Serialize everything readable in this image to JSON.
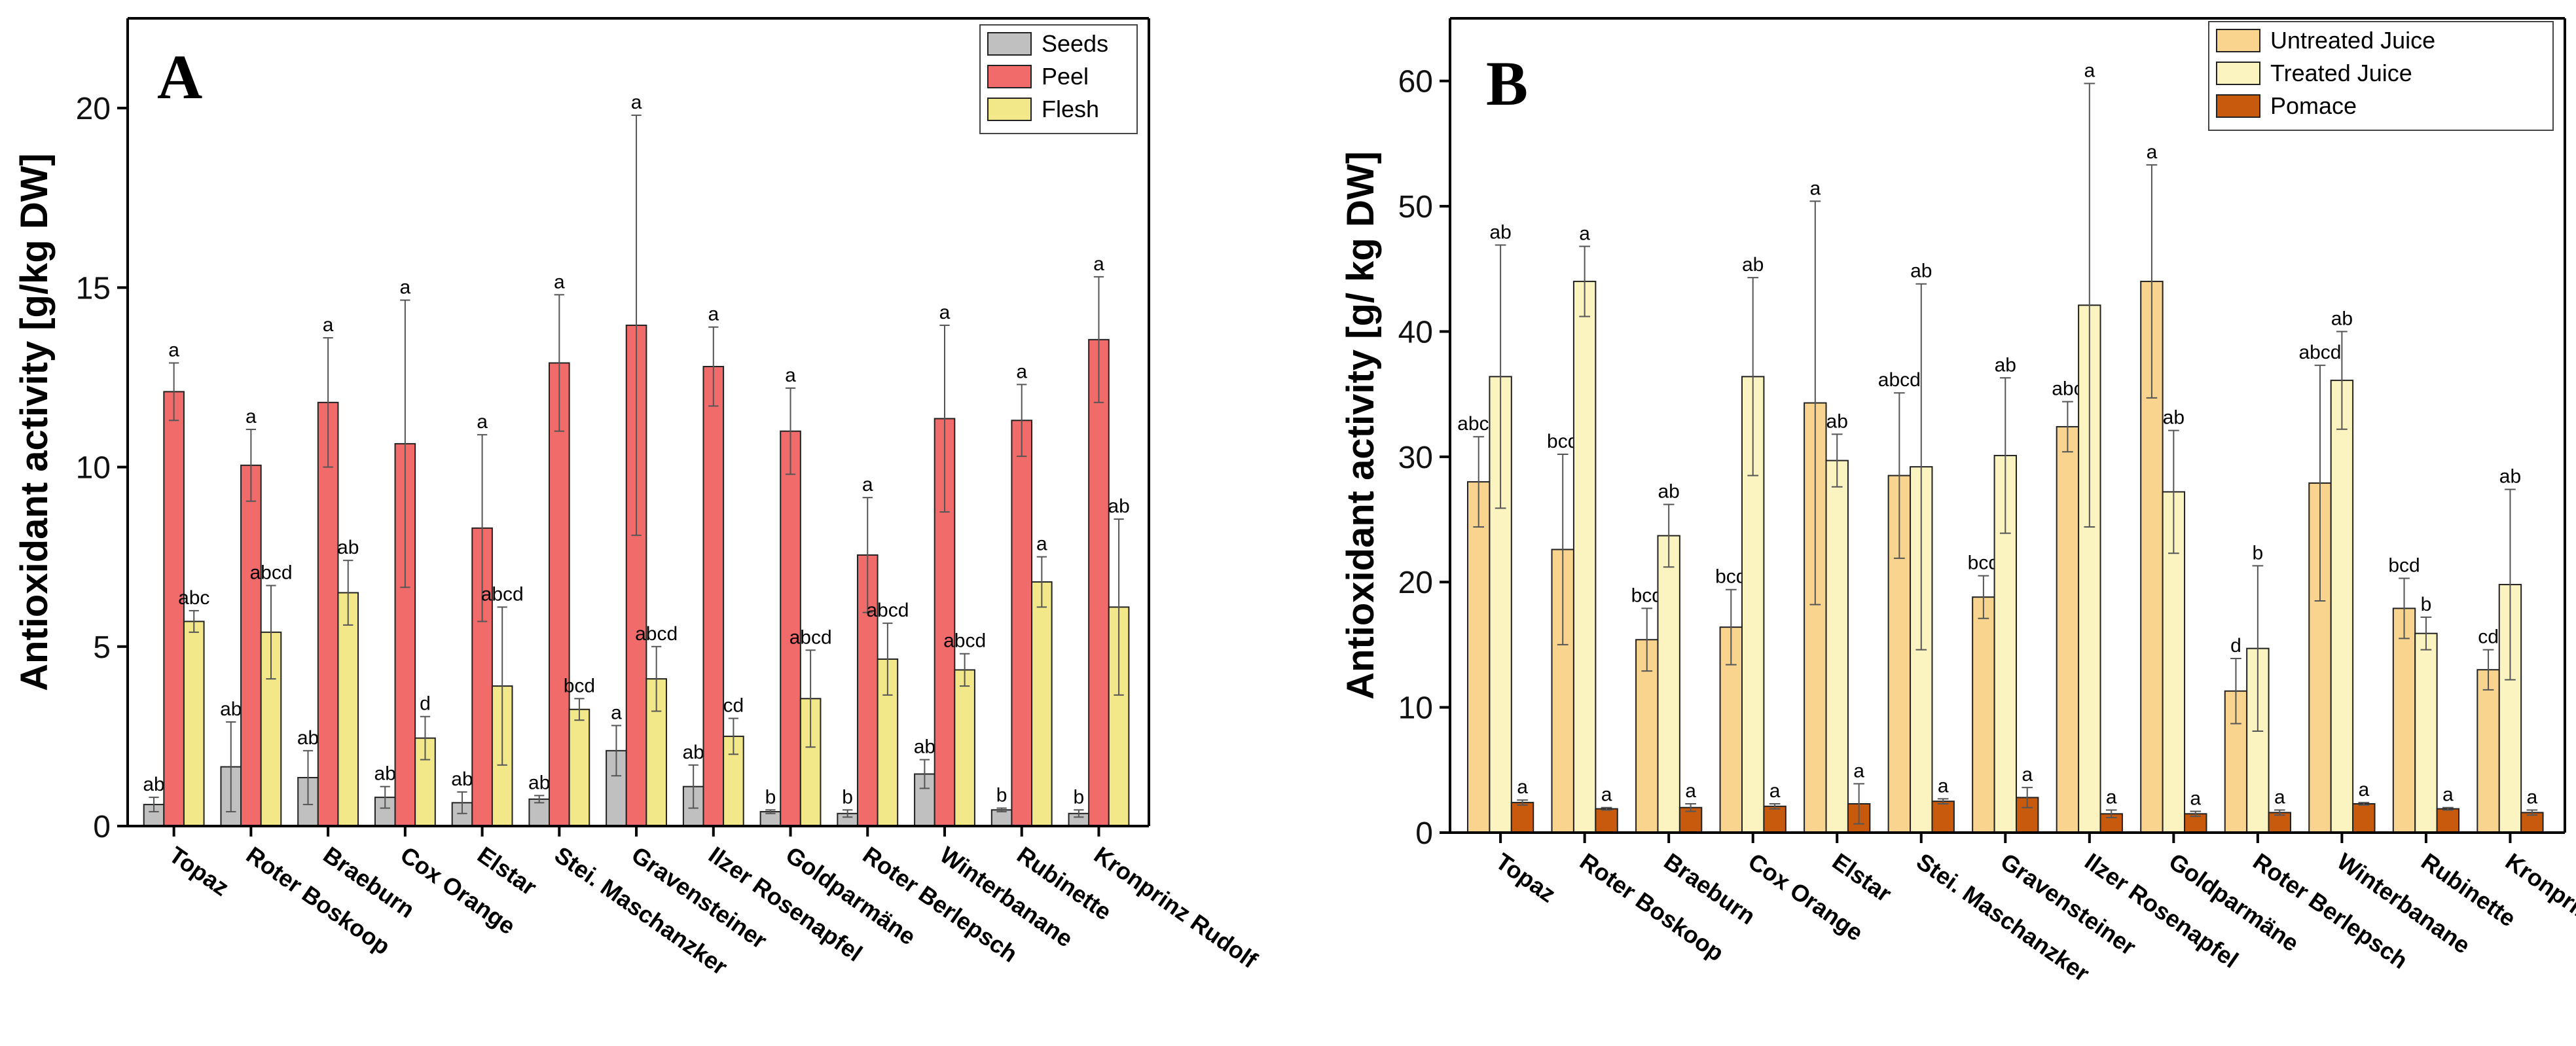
{
  "chart_data": [
    {
      "type": "bar",
      "panel_letter": "A",
      "ylabel": "Antioxidant activity [g/kg DW]",
      "xlabel": "",
      "ylim": [
        0,
        22.5
      ],
      "yticks": [
        0,
        5,
        10,
        15,
        20
      ],
      "ytick_labels": [
        "0",
        "5",
        "10",
        "15",
        "20"
      ],
      "legend_position": "top-right",
      "categories": [
        "Topaz",
        "Roter Boskoop",
        "Braeburn",
        "Cox Orange",
        "Elstar",
        "Stei. Maschanzker",
        "Gravensteiner",
        "Ilzer Rosenapfel",
        "Goldparmäne",
        "Roter Berlepsch",
        "Winterbanane",
        "Rubinette",
        "Kronprinz Rudolf"
      ],
      "series": [
        {
          "name": "Seeds",
          "color": "#c0c0c0",
          "values": [
            0.6,
            1.65,
            1.35,
            0.8,
            0.65,
            0.75,
            2.1,
            1.1,
            0.4,
            0.35,
            1.45,
            0.45,
            0.35
          ],
          "errors": [
            0.2,
            1.25,
            0.75,
            0.3,
            0.3,
            0.1,
            0.7,
            0.6,
            0.05,
            0.1,
            0.4,
            0.05,
            0.1
          ],
          "labels": [
            "ab",
            "ab",
            "ab",
            "ab",
            "ab",
            "ab",
            "a",
            "ab",
            "b",
            "b",
            "ab",
            "b",
            "b"
          ]
        },
        {
          "name": "Peel",
          "color": "#f26b6b",
          "values": [
            12.1,
            10.05,
            11.8,
            10.65,
            8.3,
            12.9,
            13.95,
            12.8,
            11.0,
            7.55,
            11.35,
            11.3,
            13.55
          ],
          "errors": [
            0.8,
            1.0,
            1.8,
            4.0,
            2.6,
            1.9,
            5.85,
            1.1,
            1.2,
            1.6,
            2.6,
            1.0,
            1.75
          ],
          "labels": [
            "a",
            "a",
            "a",
            "a",
            "a",
            "a",
            "a",
            "a",
            "a",
            "a",
            "a",
            "a",
            "a"
          ]
        },
        {
          "name": "Flesh",
          "color": "#f2e88a",
          "values": [
            5.7,
            5.4,
            6.5,
            2.45,
            3.9,
            3.25,
            4.1,
            2.5,
            3.55,
            4.65,
            4.35,
            6.8,
            6.1
          ],
          "errors": [
            0.3,
            1.3,
            0.9,
            0.6,
            2.2,
            0.3,
            0.9,
            0.5,
            1.35,
            1.0,
            0.45,
            0.7,
            2.45
          ],
          "labels": [
            "abc",
            "abcd",
            "ab",
            "d",
            "abcd",
            "bcd",
            "abcd",
            "cd",
            "abcd",
            "abcd",
            "abcd",
            "a",
            "ab"
          ]
        }
      ]
    },
    {
      "type": "bar",
      "panel_letter": "B",
      "ylabel": "Antioxidant activity [g/ kg DW]",
      "xlabel": "",
      "ylim": [
        0,
        65
      ],
      "yticks": [
        0,
        10,
        20,
        30,
        40,
        50,
        60
      ],
      "ytick_labels": [
        "0",
        "10",
        "20",
        "30",
        "40",
        "50",
        "60"
      ],
      "legend_position": "top-right",
      "categories": [
        "Topaz",
        "Roter Boskoop",
        "Braeburn",
        "Cox Orange",
        "Elstar",
        "Stei. Maschanzker",
        "Gravensteiner",
        "Ilzer Rosenapfel",
        "Goldparmäne",
        "Roter Berlepsch",
        "Winterbanane",
        "Rubinette",
        "Kronprinz Rudolf"
      ],
      "series": [
        {
          "name": "Untreated Juice",
          "color": "#f9d48f",
          "values": [
            28.0,
            22.6,
            15.4,
            16.4,
            34.3,
            28.5,
            18.8,
            32.4,
            44.0,
            11.3,
            27.9,
            17.9,
            13.0
          ],
          "errors": [
            3.6,
            7.6,
            2.5,
            3.0,
            16.1,
            6.6,
            1.7,
            2.0,
            9.3,
            2.6,
            9.4,
            2.4,
            1.6
          ],
          "labels": [
            "abcd",
            "bcd",
            "bcd",
            "bcd",
            "a",
            "abcd",
            "bcd",
            "abc",
            "a",
            "d",
            "abcd",
            "bcd",
            "cd"
          ]
        },
        {
          "name": "Treated Juice",
          "color": "#fcf4c0",
          "values": [
            36.4,
            44.0,
            23.7,
            36.4,
            29.7,
            29.2,
            30.1,
            42.1,
            27.2,
            14.7,
            36.1,
            15.9,
            19.8
          ],
          "errors": [
            10.5,
            2.8,
            2.5,
            7.9,
            2.1,
            14.6,
            6.2,
            17.7,
            4.9,
            6.6,
            3.9,
            1.3,
            7.6
          ],
          "labels": [
            "ab",
            "a",
            "ab",
            "ab",
            "ab",
            "ab",
            "ab",
            "a",
            "ab",
            "b",
            "ab",
            "b",
            "ab"
          ]
        },
        {
          "name": "Pomace",
          "color": "#c85a0e",
          "values": [
            2.4,
            1.9,
            2.0,
            2.1,
            2.3,
            2.5,
            2.8,
            1.5,
            1.5,
            1.6,
            2.3,
            1.9,
            1.6
          ],
          "errors": [
            0.2,
            0.1,
            0.3,
            0.2,
            1.6,
            0.2,
            0.8,
            0.3,
            0.2,
            0.2,
            0.1,
            0.1,
            0.2
          ],
          "labels": [
            "a",
            "a",
            "a",
            "a",
            "a",
            "a",
            "a",
            "a",
            "a",
            "a",
            "a",
            "a",
            "a"
          ]
        }
      ]
    }
  ]
}
